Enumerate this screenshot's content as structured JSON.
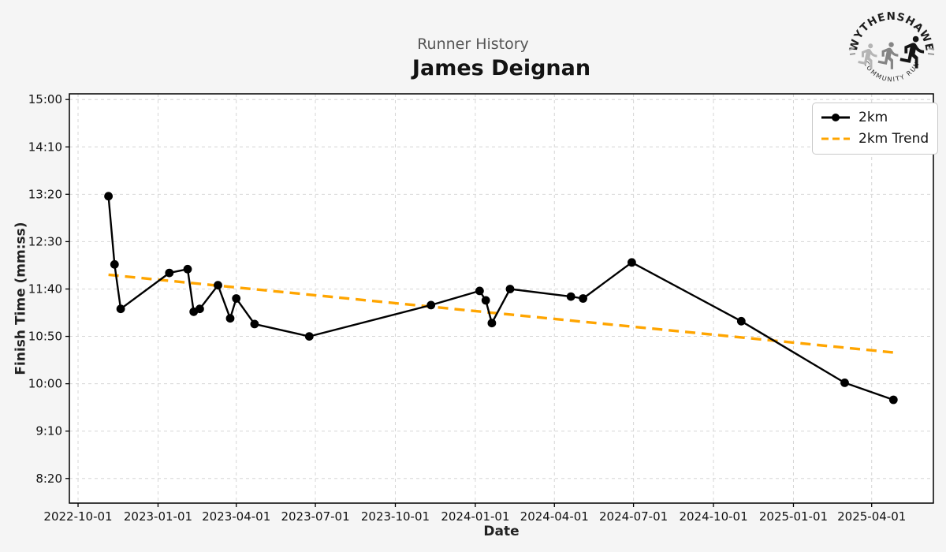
{
  "header": {
    "suptitle": "Runner History",
    "title": "James Deignan"
  },
  "logo": {
    "top_text": "WYTHENSHAWE",
    "bottom_text": "COMMUNITY RUN"
  },
  "chart_data": {
    "type": "line",
    "title": "James Deignan",
    "subtitle": "Runner History",
    "xlabel": "Date",
    "ylabel": "Finish Time (mm:ss)",
    "grid": true,
    "legend_position": "upper right",
    "x_ticks": [
      "2022-10-01",
      "2023-01-01",
      "2023-04-01",
      "2023-07-01",
      "2023-10-01",
      "2024-01-01",
      "2024-04-01",
      "2024-07-01",
      "2024-10-01",
      "2025-01-01",
      "2025-04-01"
    ],
    "y_ticks": [
      "8:20",
      "9:10",
      "10:00",
      "10:50",
      "11:40",
      "12:30",
      "13:20",
      "14:10",
      "15:00"
    ],
    "xlim": [
      "2022-09-21",
      "2025-06-11"
    ],
    "ylim": [
      "7:54",
      "15:06"
    ],
    "series": [
      {
        "name": "2km",
        "color": "#000000",
        "style": "solid",
        "marker": "circle",
        "points": [
          [
            "2022-11-05",
            "13:18"
          ],
          [
            "2022-11-12",
            "12:06"
          ],
          [
            "2022-11-19",
            "11:19"
          ],
          [
            "2023-01-14",
            "11:57"
          ],
          [
            "2023-02-04",
            "12:01"
          ],
          [
            "2023-02-11",
            "11:16"
          ],
          [
            "2023-02-18",
            "11:19"
          ],
          [
            "2023-03-11",
            "11:44"
          ],
          [
            "2023-03-25",
            "11:09"
          ],
          [
            "2023-04-01",
            "11:30"
          ],
          [
            "2023-04-22",
            "11:03"
          ],
          [
            "2023-06-24",
            "10:50"
          ],
          [
            "2023-11-11",
            "11:23"
          ],
          [
            "2024-01-06",
            "11:38"
          ],
          [
            "2024-01-13",
            "11:28"
          ],
          [
            "2024-01-20",
            "11:04"
          ],
          [
            "2024-02-10",
            "11:40"
          ],
          [
            "2024-04-20",
            "11:32"
          ],
          [
            "2024-05-04",
            "11:30"
          ],
          [
            "2024-06-29",
            "12:08"
          ],
          [
            "2024-11-02",
            "11:06"
          ],
          [
            "2025-03-01",
            "10:01"
          ],
          [
            "2025-04-26",
            "9:43"
          ]
        ]
      },
      {
        "name": "2km Trend",
        "color": "#FFA500",
        "style": "dashed",
        "marker": "none",
        "points": [
          [
            "2022-11-05",
            "11:55"
          ],
          [
            "2025-04-26",
            "10:33"
          ]
        ]
      }
    ],
    "legend": [
      {
        "label": "2km",
        "color": "#000000",
        "style": "solid-marker"
      },
      {
        "label": "2km Trend",
        "color": "#FFA500",
        "style": "dashed"
      }
    ]
  },
  "colors": {
    "figure_bg": "#f5f5f5",
    "plot_bg": "#ffffff",
    "grid": "#d6d6d6",
    "spine": "#000000",
    "tick_label": "#111111",
    "trend": "#FFA500",
    "series_line": "#000000"
  }
}
